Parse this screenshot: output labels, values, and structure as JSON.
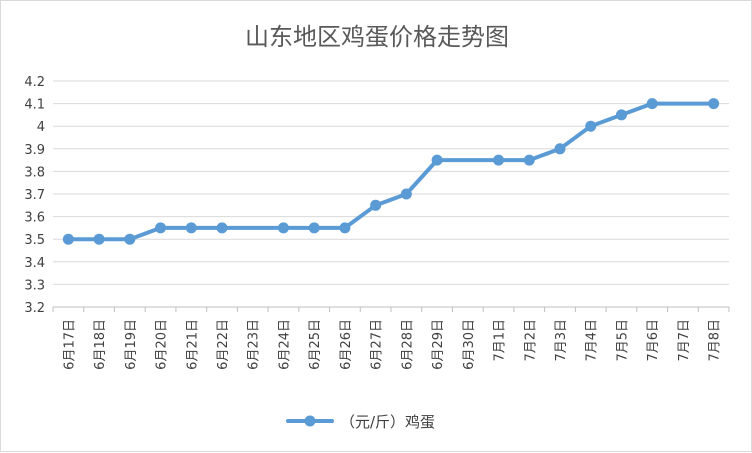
{
  "chart_data": {
    "type": "line",
    "title": "山东地区鸡蛋价格走势图",
    "xlabel": "",
    "ylabel": "",
    "categories": [
      "6月17日",
      "6月18日",
      "6月19日",
      "6月20日",
      "6月21日",
      "6月22日",
      "6月23日",
      "6月24日",
      "6月25日",
      "6月26日",
      "6月27日",
      "6月28日",
      "6月29日",
      "6月30日",
      "7月1日",
      "7月2日",
      "7月3日",
      "7月4日",
      "7月5日",
      "7月6日",
      "7月7日",
      "7月8日"
    ],
    "series": [
      {
        "name": "（元/斤）鸡蛋",
        "color": "#5b9bd5",
        "points": [
          {
            "x": "6月17日",
            "y": 3.5
          },
          {
            "x": "6月18日",
            "y": 3.5
          },
          {
            "x": "6月19日",
            "y": 3.5
          },
          {
            "x": "6月20日",
            "y": 3.55
          },
          {
            "x": "6月21日",
            "y": 3.55
          },
          {
            "x": "6月22日",
            "y": 3.55
          },
          {
            "x": "6月24日",
            "y": 3.55
          },
          {
            "x": "6月25日",
            "y": 3.55
          },
          {
            "x": "6月26日",
            "y": 3.55
          },
          {
            "x": "6月27日",
            "y": 3.65
          },
          {
            "x": "6月28日",
            "y": 3.7
          },
          {
            "x": "6月29日",
            "y": 3.85
          },
          {
            "x": "7月1日",
            "y": 3.85
          },
          {
            "x": "7月2日",
            "y": 3.85
          },
          {
            "x": "7月3日",
            "y": 3.9
          },
          {
            "x": "7月4日",
            "y": 4.0
          },
          {
            "x": "7月5日",
            "y": 4.05
          },
          {
            "x": "7月6日",
            "y": 4.1
          },
          {
            "x": "7月8日",
            "y": 4.1
          }
        ]
      }
    ],
    "yticks": [
      "3.2",
      "3.3",
      "3.4",
      "3.5",
      "3.6",
      "3.7",
      "3.8",
      "3.9",
      "4",
      "4.1",
      "4.2"
    ],
    "ylim": [
      3.2,
      4.2
    ],
    "grid": true,
    "legend": "bottom",
    "colors": {
      "gridline": "#d9d9d9",
      "axis": "#bfbfbf"
    }
  }
}
